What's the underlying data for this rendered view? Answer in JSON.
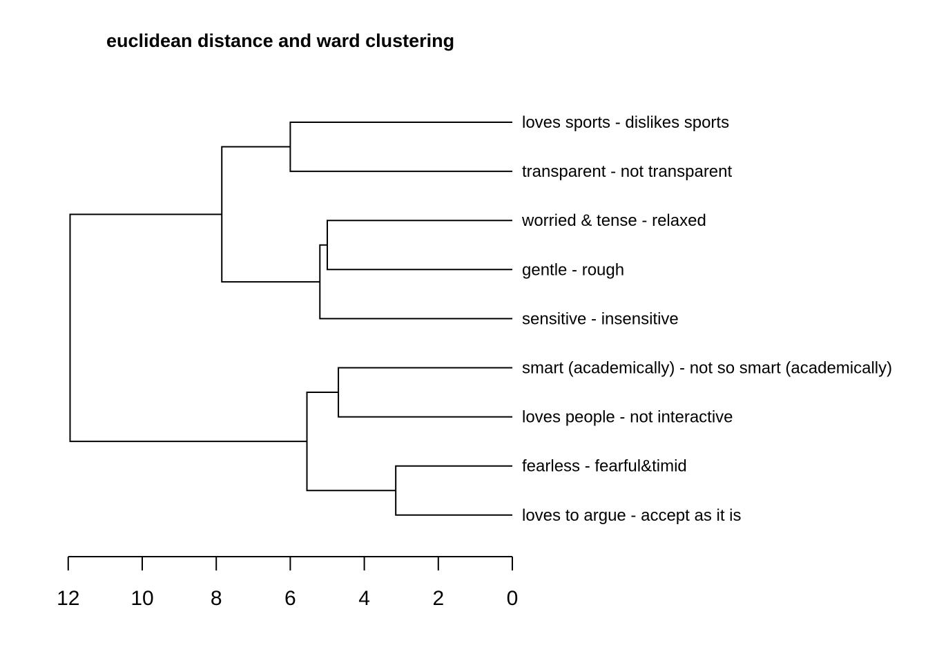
{
  "chart_data": {
    "type": "dendrogram",
    "title": "euclidean distance and ward clustering",
    "xlabel": "",
    "ylabel": "",
    "orientation": "horizontal",
    "axis": {
      "range": [
        12,
        0
      ],
      "ticks": [
        12,
        10,
        8,
        6,
        4,
        2,
        0
      ]
    },
    "leaves": [
      "loves sports - dislikes sports",
      "transparent - not transparent",
      "worried & tense - relaxed",
      "gentle - rough",
      "sensitive - insensitive",
      "smart (academically) - not so smart (academically)",
      "loves people - not interactive",
      "fearless - fearful&timid",
      "loves to argue - accept as it is"
    ],
    "merges": [
      {
        "id": "m1",
        "left": 7,
        "right": 8,
        "height": 3.15
      },
      {
        "id": "m2",
        "left": 2,
        "right": 3,
        "height": 5.0
      },
      {
        "id": "m3",
        "left": 5,
        "right": 6,
        "height": 4.7
      },
      {
        "id": "m4",
        "left": "m2",
        "right": 4,
        "height": 5.2
      },
      {
        "id": "m5",
        "left": "m3",
        "right": "m1",
        "height": 5.55
      },
      {
        "id": "m6",
        "left": 0,
        "right": 1,
        "height": 6.0
      },
      {
        "id": "m7",
        "left": "m6",
        "right": "m4",
        "height": 7.85
      },
      {
        "id": "m8",
        "left": "m7",
        "right": "m5",
        "height": 11.95
      }
    ]
  }
}
